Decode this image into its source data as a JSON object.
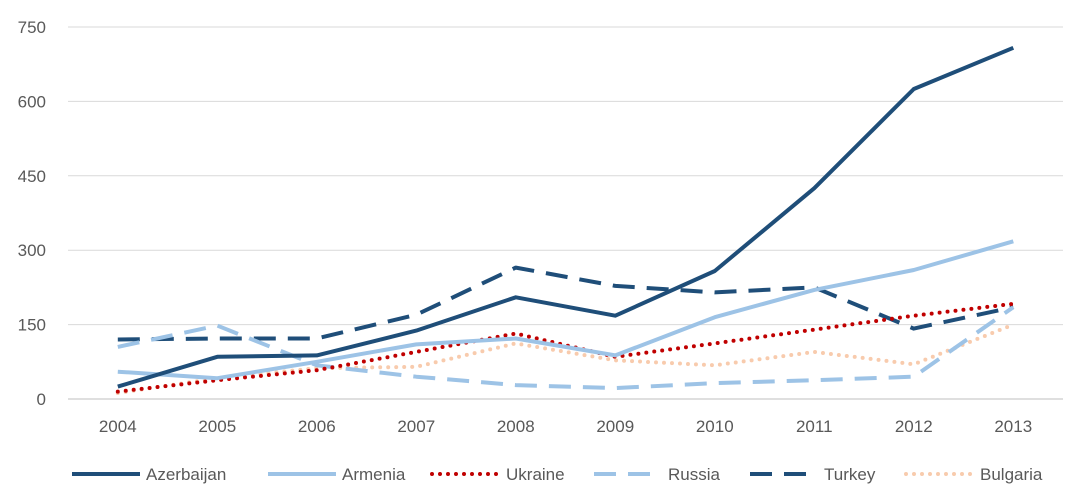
{
  "chart_data": {
    "type": "line",
    "title": "",
    "xlabel": "",
    "ylabel": "",
    "x": [
      "2004",
      "2005",
      "2006",
      "2007",
      "2008",
      "2009",
      "2010",
      "2011",
      "2012",
      "2013"
    ],
    "ylim": [
      0,
      750
    ],
    "yticks": [
      0,
      150,
      300,
      450,
      600,
      750
    ],
    "grid": "horizontal",
    "legend_position": "bottom",
    "series": [
      {
        "name": "Azerbaijan",
        "color": "#1f4e79",
        "style": "solid",
        "values": [
          25,
          85,
          88,
          138,
          205,
          168,
          258,
          425,
          625,
          708
        ]
      },
      {
        "name": "Armenia",
        "color": "#9dc3e6",
        "style": "solid",
        "values": [
          55,
          42,
          75,
          110,
          122,
          88,
          165,
          220,
          260,
          318
        ]
      },
      {
        "name": "Ukraine",
        "color": "#c00000",
        "style": "dotted",
        "values": [
          15,
          38,
          58,
          95,
          132,
          85,
          112,
          140,
          168,
          192
        ]
      },
      {
        "name": "Russia",
        "color": "#9dc3e6",
        "style": "dashed",
        "values": [
          105,
          148,
          68,
          45,
          28,
          22,
          32,
          38,
          45,
          185
        ]
      },
      {
        "name": "Turkey",
        "color": "#1f4e79",
        "style": "dashed",
        "values": [
          120,
          122,
          122,
          170,
          265,
          228,
          215,
          225,
          142,
          185
        ]
      },
      {
        "name": "Bulgaria",
        "color": "#f8cbad",
        "style": "dotted",
        "values": [
          12,
          42,
          62,
          65,
          112,
          78,
          68,
          95,
          70,
          150
        ]
      }
    ]
  }
}
